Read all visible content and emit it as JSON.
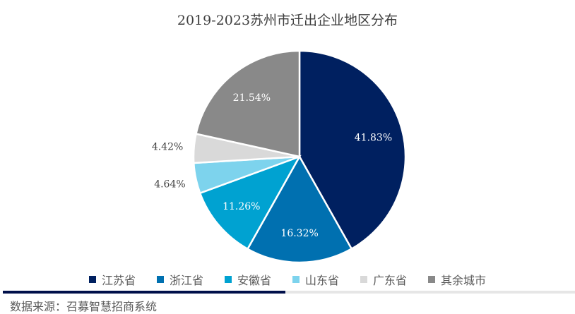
{
  "chart_data": {
    "type": "pie",
    "title": "2019-2023苏州市迁出企业地区分布",
    "categories": [
      "江苏省",
      "浙江省",
      "安徽省",
      "山东省",
      "广东省",
      "其余城市"
    ],
    "values": [
      41.83,
      16.32,
      11.26,
      4.64,
      4.42,
      21.54
    ],
    "labels": [
      "41.83%",
      "16.32%",
      "11.26%",
      "4.64%",
      "4.42%",
      "21.54%"
    ],
    "colors": [
      "#002060",
      "#0070b0",
      "#00a2d1",
      "#7dd3ed",
      "#d9d9d9",
      "#898989"
    ],
    "label_outside": [
      false,
      false,
      false,
      true,
      true,
      false
    ],
    "legend_position": "bottom"
  },
  "source": "数据来源：召募智慧招商系统"
}
